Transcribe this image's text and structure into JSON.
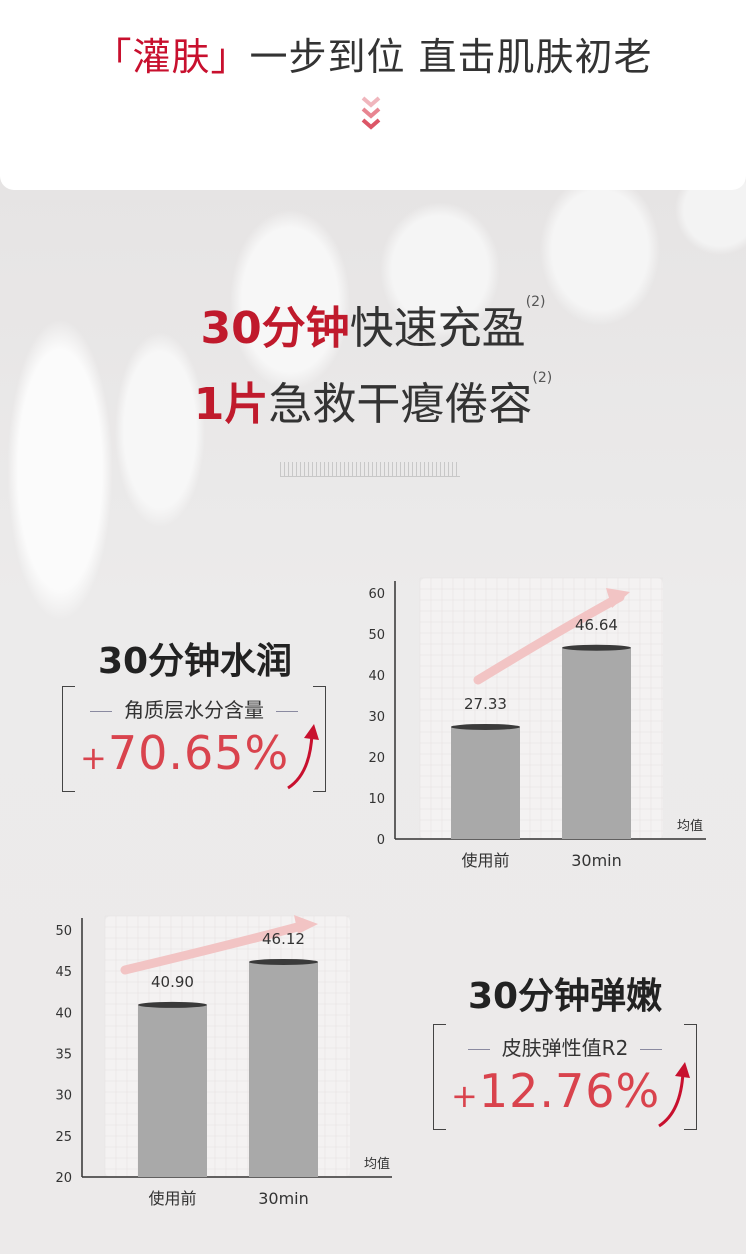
{
  "header": {
    "title_highlight": "「灌肤」",
    "title_rest": "一步到位  直击肌肤初老",
    "chevron_icon": "triple-chevron-down-icon"
  },
  "headline": {
    "line1_highlight": "30分钟",
    "line1_rest": "快速充盈",
    "line1_note": "(2)",
    "line2_highlight": "1片",
    "line2_rest": "急救干瘪倦容",
    "line2_note": "(2)"
  },
  "hydration": {
    "title": "30分钟水润",
    "metric": "角质层水分含量",
    "plus": "+",
    "value": "70.65%",
    "arrow_icon": "up-arrow-icon"
  },
  "elasticity": {
    "title": "30分钟弹嫩",
    "metric": "皮肤弹性值R2",
    "plus": "+",
    "value": "12.76%",
    "arrow_icon": "up-arrow-icon"
  },
  "colors": {
    "accent": "#c8102e",
    "percent": "#d9434d",
    "bar": "#a9a9a9",
    "bar_top": "#3a3a3a",
    "trend_arrow": "#f2c4c4"
  },
  "chart_data": [
    {
      "type": "bar",
      "categories": [
        "使用前",
        "30min"
      ],
      "values": [
        27.33,
        46.64
      ],
      "value_labels": [
        "27.33",
        "46.64"
      ],
      "xlabel": "",
      "ylabel": "",
      "unit_label": "均值",
      "ylim": [
        0,
        60
      ],
      "yticks": [
        0,
        10,
        20,
        30,
        40,
        50,
        60
      ],
      "grid": true,
      "trend_arrow": true
    },
    {
      "type": "bar",
      "categories": [
        "使用前",
        "30min"
      ],
      "values": [
        40.9,
        46.12
      ],
      "value_labels": [
        "40.90",
        "46.12"
      ],
      "xlabel": "",
      "ylabel": "",
      "unit_label": "均值",
      "ylim": [
        20,
        50
      ],
      "yticks": [
        20,
        25,
        30,
        35,
        40,
        45,
        50
      ],
      "grid": true,
      "trend_arrow": true
    }
  ]
}
